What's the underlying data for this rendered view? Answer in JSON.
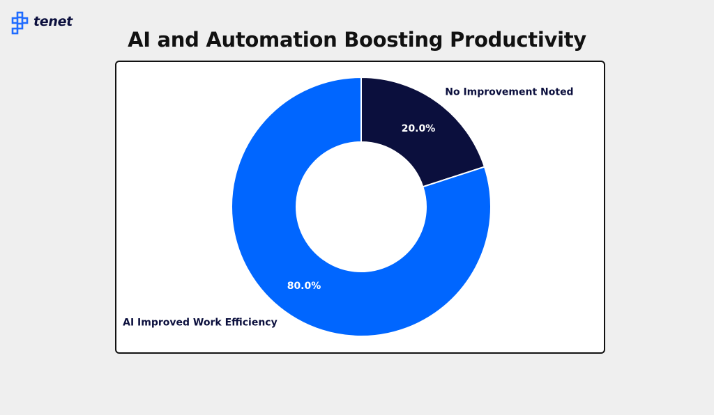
{
  "brand": {
    "name": "tenet",
    "logo_icon": "tenet-logo-icon",
    "color": "#1f6bff"
  },
  "chart_data": {
    "type": "pie",
    "variant": "donut",
    "title": "AI and Automation Boosting Productivity",
    "slices": [
      {
        "label": "No Improvement Noted",
        "value": 20.0,
        "pct_label": "20.0%",
        "color": "#0b0f3d"
      },
      {
        "label": "AI Improved Work Efficiency",
        "value": 80.0,
        "pct_label": "80.0%",
        "color": "#0066ff"
      }
    ],
    "start_angle": "12 o'clock",
    "direction": "clockwise",
    "legend": "none"
  }
}
